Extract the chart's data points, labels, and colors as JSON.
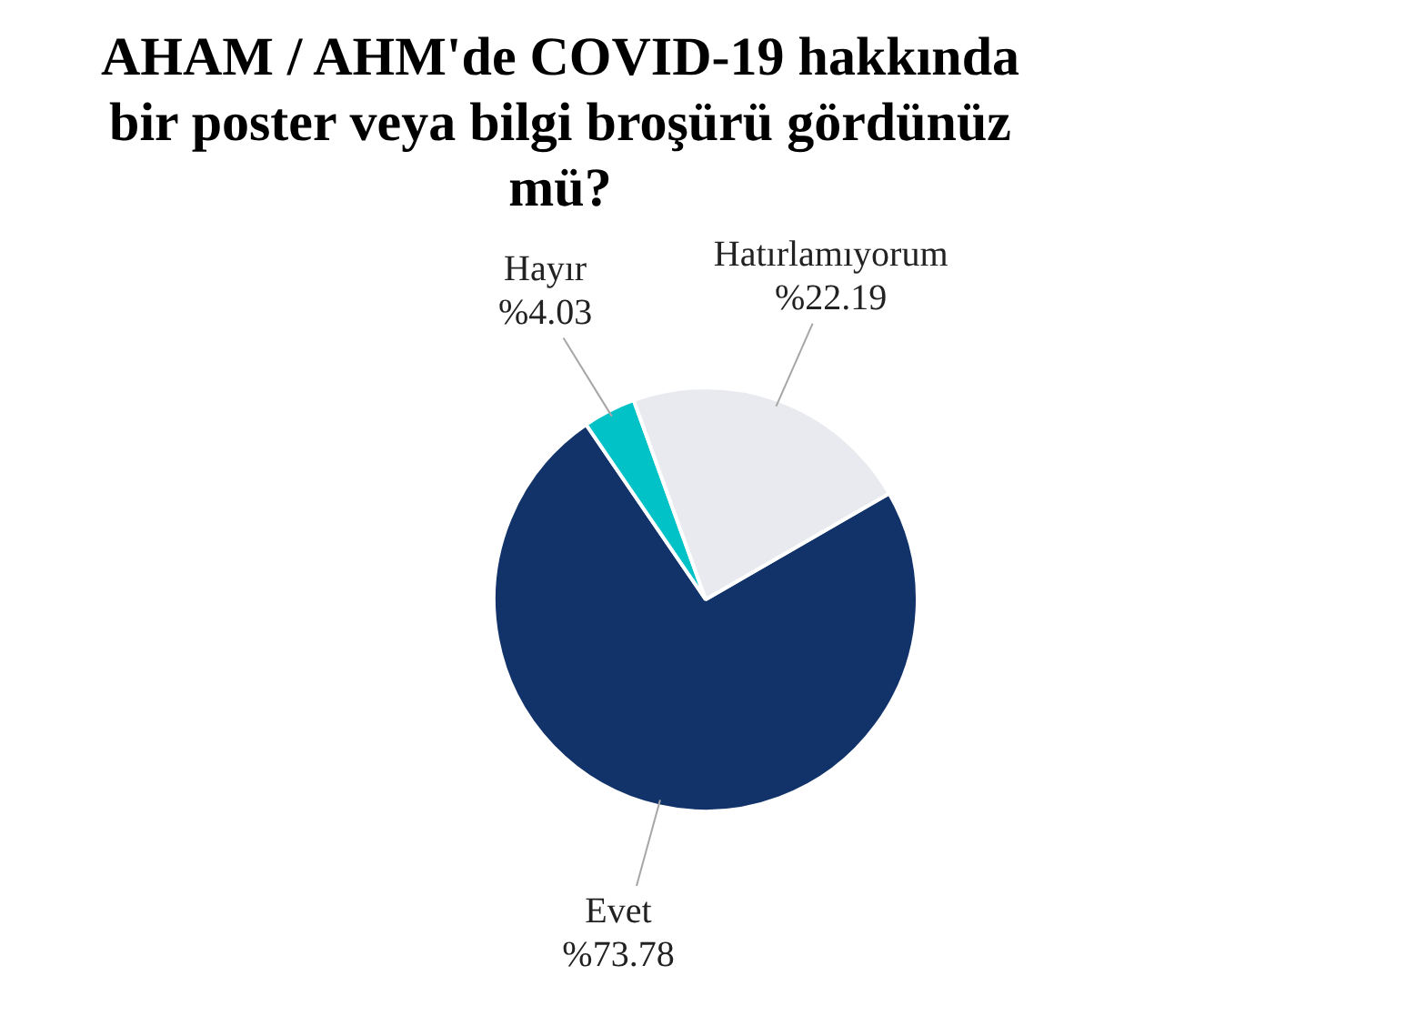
{
  "chart_data": {
    "type": "pie",
    "title": "AHAM / AHM'de COVID-19 hakkında bir poster veya bilgi broşürü gördünüz mü?",
    "categories": [
      "Evet",
      "Hayır",
      "Hatırlamıyorum"
    ],
    "values": [
      73.78,
      4.03,
      22.19
    ],
    "colors": [
      "#12336a",
      "#00c2c7",
      "#e8eaef"
    ],
    "value_labels": [
      "%73.78",
      "%4.03",
      "%22.19"
    ],
    "legend": false
  }
}
